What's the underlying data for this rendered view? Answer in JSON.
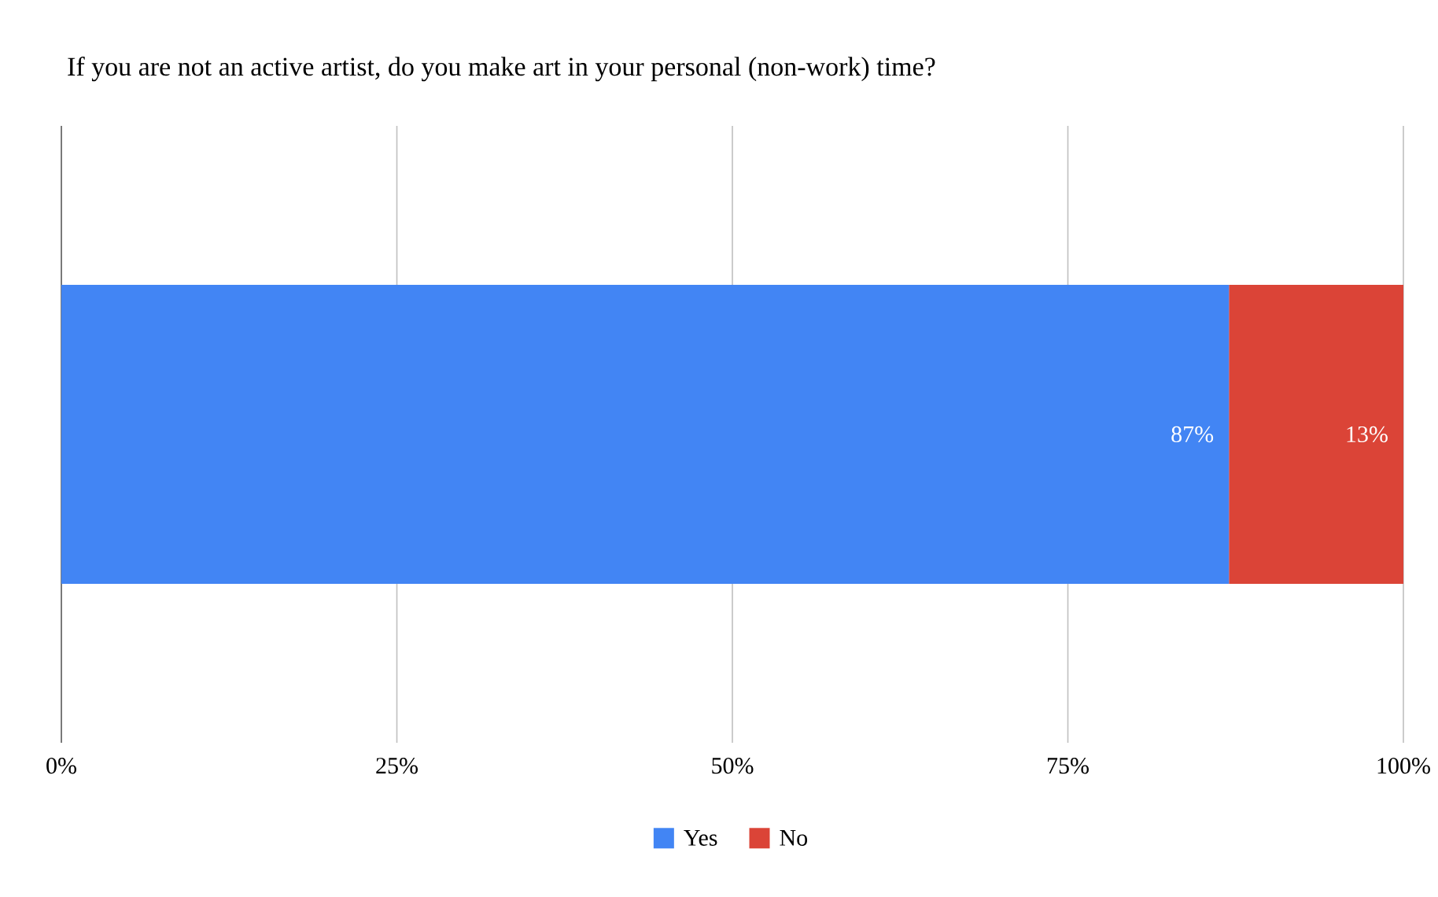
{
  "chart_data": {
    "type": "bar",
    "orientation": "horizontal",
    "stacked": true,
    "title": "If you are not an active artist, do you make art in your personal (non-work) time?",
    "categories": [
      null
    ],
    "series": [
      {
        "name": "Yes",
        "color": "#4285f4",
        "values": [
          87
        ],
        "value_labels": [
          "87%"
        ]
      },
      {
        "name": "No",
        "color": "#db4437",
        "values": [
          13
        ],
        "value_labels": [
          "13%"
        ]
      }
    ],
    "xlim": [
      0,
      100
    ],
    "xticks": [
      {
        "value": 0,
        "label": "0%"
      },
      {
        "value": 25,
        "label": "25%"
      },
      {
        "value": 50,
        "label": "50%"
      },
      {
        "value": 75,
        "label": "75%"
      },
      {
        "value": 100,
        "label": "100%"
      }
    ],
    "grid": "x",
    "legend": "bottom"
  }
}
